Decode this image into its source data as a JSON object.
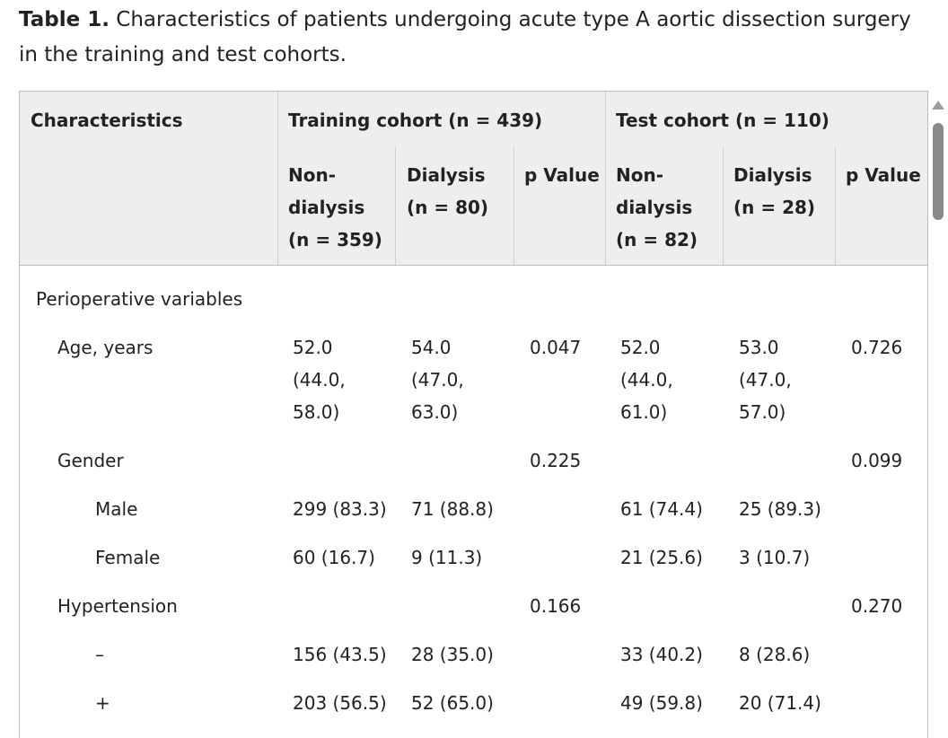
{
  "caption": {
    "label": "Table 1.",
    "text": " Characteristics of patients undergoing acute type A aortic dissection surgery in the training and test cohorts."
  },
  "header": {
    "characteristics": "Characteristics",
    "training_group": "Training cohort (n = 439)",
    "test_group": "Test cohort (n = 110)",
    "train_nondialysis": "Non-dialysis (n = 359)",
    "train_dialysis": "Dialysis (n = 80)",
    "train_p": "p Value",
    "test_nondialysis": "Non-dialysis (n = 82)",
    "test_dialysis": "Dialysis (n = 28)",
    "test_p": "p Value"
  },
  "section": {
    "label": "Perioperative variables"
  },
  "rows": [
    {
      "label": "Age, years",
      "tr_nd": "52.0 (44.0, 58.0)",
      "tr_d": "54.0 (47.0, 63.0)",
      "tr_p": "0.047",
      "te_nd": "52.0 (44.0, 61.0)",
      "te_d": "53.0 (47.0, 57.0)",
      "te_p": "0.726"
    },
    {
      "label": "Gender",
      "tr_nd": "",
      "tr_d": "",
      "tr_p": "0.225",
      "te_nd": "",
      "te_d": "",
      "te_p": "0.099"
    },
    {
      "label": "Male",
      "tr_nd": "299 (83.3)",
      "tr_d": "71 (88.8)",
      "tr_p": "",
      "te_nd": "61 (74.4)",
      "te_d": "25 (89.3)",
      "te_p": ""
    },
    {
      "label": "Female",
      "tr_nd": "60 (16.7)",
      "tr_d": "9 (11.3)",
      "tr_p": "",
      "te_nd": "21 (25.6)",
      "te_d": "3 (10.7)",
      "te_p": ""
    },
    {
      "label": "Hypertension",
      "tr_nd": "",
      "tr_d": "",
      "tr_p": "0.166",
      "te_nd": "",
      "te_d": "",
      "te_p": "0.270"
    },
    {
      "label": "–",
      "tr_nd": "156 (43.5)",
      "tr_d": "28 (35.0)",
      "tr_p": "",
      "te_nd": "33 (40.2)",
      "te_d": "8 (28.6)",
      "te_p": ""
    },
    {
      "label": "+",
      "tr_nd": "203 (56.5)",
      "tr_d": "52 (65.0)",
      "tr_p": "",
      "te_nd": "49 (59.8)",
      "te_d": "20 (71.4)",
      "te_p": ""
    }
  ]
}
